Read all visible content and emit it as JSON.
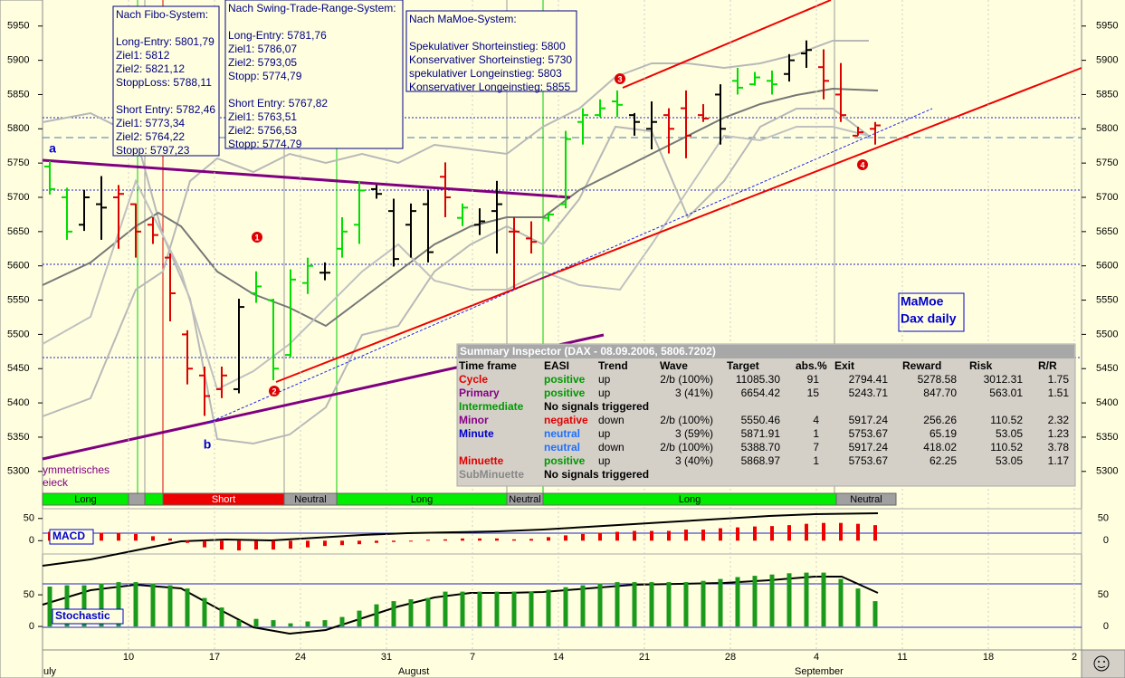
{
  "chart_data": {
    "type": "ohlc",
    "ylim": [
      5268,
      5988
    ],
    "yticks": [
      5300,
      5350,
      5400,
      5450,
      5500,
      5550,
      5600,
      5650,
      5700,
      5750,
      5800,
      5850,
      5900,
      5950
    ],
    "ohlc": [
      [
        5745,
        5753,
        5704,
        5712
      ],
      [
        5700,
        5714,
        5638,
        5650
      ],
      [
        5660,
        5711,
        5651,
        5700
      ],
      [
        5690,
        5731,
        5638,
        5685
      ],
      [
        5700,
        5718,
        5625,
        5705
      ],
      [
        5690,
        5691,
        5612,
        5650
      ],
      [
        5660,
        5671,
        5632,
        5645
      ],
      [
        5612,
        5618,
        5519,
        5560
      ],
      [
        5500,
        5506,
        5427,
        5450
      ],
      [
        5440,
        5453,
        5381,
        5410
      ],
      [
        5420,
        5453,
        5407,
        5440
      ],
      [
        5420,
        5552,
        5414,
        5540
      ],
      [
        5560,
        5592,
        5546,
        5570
      ],
      [
        5550,
        5552,
        5433,
        5450
      ],
      [
        5470,
        5595,
        5467,
        5580
      ],
      [
        5575,
        5612,
        5559,
        5600
      ],
      [
        5590,
        5605,
        5579,
        5590
      ],
      [
        5625,
        5671,
        5612,
        5650
      ],
      [
        5660,
        5724,
        5632,
        5710
      ],
      [
        5712,
        5718,
        5698,
        5705
      ],
      [
        5680,
        5698,
        5599,
        5610
      ],
      [
        5660,
        5691,
        5612,
        5680
      ],
      [
        5690,
        5711,
        5605,
        5620
      ],
      [
        5730,
        5751,
        5671,
        5700
      ],
      [
        5670,
        5691,
        5658,
        5685
      ],
      [
        5660,
        5684,
        5645,
        5665
      ],
      [
        5680,
        5724,
        5618,
        5690
      ],
      [
        5650,
        5671,
        5566,
        5650
      ],
      [
        5640,
        5665,
        5618,
        5635
      ],
      [
        5670,
        5678,
        5665,
        5675
      ],
      [
        5690,
        5797,
        5684,
        5785
      ],
      [
        5810,
        5830,
        5777,
        5820
      ],
      [
        5820,
        5843,
        5817,
        5830
      ],
      [
        5840,
        5856,
        5817,
        5835
      ],
      [
        5820,
        5823,
        5790,
        5810
      ],
      [
        5800,
        5840,
        5770,
        5810
      ],
      [
        5820,
        5830,
        5764,
        5800
      ],
      [
        5830,
        5856,
        5757,
        5790
      ],
      [
        5820,
        5836,
        5810,
        5815
      ],
      [
        5850,
        5865,
        5777,
        5800
      ],
      [
        5870,
        5889,
        5850,
        5860
      ],
      [
        5865,
        5883,
        5863,
        5875
      ],
      [
        5870,
        5885,
        5850,
        5865
      ],
      [
        5880,
        5909,
        5869,
        5900
      ],
      [
        5910,
        5929,
        5889,
        5915
      ],
      [
        5890,
        5916,
        5843,
        5870
      ],
      [
        5850,
        5896,
        5810,
        5820
      ],
      [
        5790,
        5803,
        5790,
        5795
      ],
      [
        5800,
        5810,
        5777,
        5805
      ]
    ],
    "bar_colors": [
      "#00dd00",
      "#00dd00",
      "#000000",
      "#000000",
      "#dd0000",
      "#dd0000",
      "#dd0000",
      "#dd0000",
      "#dd0000",
      "#dd0000",
      "#dd0000",
      "#000000",
      "#00dd00",
      "#00dd00",
      "#00dd00",
      "#00dd00",
      "#000000",
      "#00dd00",
      "#00dd00",
      "#000000",
      "#000000",
      "#000000",
      "#000000",
      "#dd0000",
      "#00dd00",
      "#000000",
      "#000000",
      "#dd0000",
      "#dd0000",
      "#00dd00",
      "#00dd00",
      "#00dd00",
      "#00dd00",
      "#00dd00",
      "#000000",
      "#000000",
      "#dd0000",
      "#dd0000",
      "#dd0000",
      "#000000",
      "#00dd00",
      "#00dd00",
      "#00dd00",
      "#000000",
      "#000000",
      "#dd0000",
      "#dd0000",
      "#dd0000",
      "#dd0000"
    ],
    "x_labels": [
      "10",
      "17",
      "24",
      "31",
      "7",
      "14",
      "21",
      "28",
      "4",
      "11",
      "18",
      "2"
    ],
    "month_labels": [
      "uly",
      "August",
      "September"
    ],
    "annotations": [
      "a",
      "b",
      "1",
      "2",
      "3",
      "4"
    ],
    "pattern_label": [
      "ymmetrisches",
      "eieck"
    ],
    "chart_label": [
      "MaMoe",
      "Dax daily"
    ]
  },
  "trend_bar": [
    {
      "label": "Long",
      "color": "#00ee00"
    },
    {
      "color": "#a0a0a0"
    },
    {
      "color": "#00ee00"
    },
    {
      "label": "Short",
      "color": "#ee0000"
    },
    {
      "label": "Neutral",
      "color": "#a0a0a0"
    },
    {
      "label": "Long",
      "color": "#00ee00"
    },
    {
      "label": "Neutral",
      "color": "#a0a0a0"
    },
    {
      "label": "Long",
      "color": "#00ee00"
    },
    {
      "label": "Neutral",
      "color": "#a0a0a0"
    }
  ],
  "macd": {
    "label": "MACD",
    "ylim": [
      -30,
      72
    ],
    "yticks": [
      0,
      50
    ],
    "values": [
      20,
      22,
      20,
      18,
      18,
      15,
      10,
      5,
      -5,
      -15,
      -20,
      -22,
      -20,
      -20,
      -18,
      -15,
      -12,
      -10,
      -8,
      -5,
      -3,
      0,
      2,
      3,
      5,
      5,
      5,
      3,
      4,
      8,
      12,
      15,
      18,
      20,
      22,
      22,
      22,
      25,
      25,
      28,
      30,
      32,
      33,
      35,
      38,
      40,
      40,
      38,
      35
    ]
  },
  "stochastic": {
    "label": "Stochastic",
    "ylim": [
      -37,
      103
    ],
    "yticks": [
      0,
      50
    ],
    "values": [
      63,
      65,
      65,
      68,
      70,
      70,
      68,
      65,
      60,
      45,
      30,
      10,
      12,
      10,
      5,
      8,
      10,
      15,
      25,
      35,
      40,
      43,
      45,
      55,
      55,
      55,
      55,
      55,
      55,
      58,
      62,
      65,
      68,
      70,
      70,
      70,
      70,
      70,
      72,
      75,
      78,
      80,
      82,
      84,
      85,
      85,
      75,
      60,
      40
    ]
  },
  "info_boxes": [
    {
      "title": "Nach Fibo-System:",
      "groups": [
        [
          "Long-Entry: 5801,79",
          "Ziel1: 5812",
          "Ziel2: 5821,12",
          "StoppLoss: 5788,11"
        ],
        [
          "Short Entry: 5782,46",
          "Ziel1: 5773,34",
          "Ziel2: 5764,22",
          "Stopp: 5797,23"
        ]
      ]
    },
    {
      "title": "Nach Swing-Trade-Range-System:",
      "groups": [
        [
          "Long-Entry: 5781,76",
          "Ziel1: 5786,07",
          "Ziel2: 5793,05",
          "Stopp: 5774,79"
        ],
        [
          "Short Entry: 5767,82",
          "Ziel1: 5763,51",
          "Ziel2: 5756,53",
          "Stopp: 5774,79"
        ]
      ]
    },
    {
      "title": "Nach MaMoe-System:",
      "groups": [
        [
          "Spekulativer Shorteinstieg: 5800",
          "Konservativer Shorteinstieg: 5730",
          "spekulativer Longeinstieg: 5803",
          "Konservativer Longeinstieg: 5855"
        ]
      ]
    }
  ],
  "summary": {
    "title": "Summary Inspector (DAX - 08.09.2006, 5806.7202)",
    "header": [
      "Time frame",
      "EASI",
      "Trend",
      "Wave",
      "Target",
      "abs.%",
      "Exit",
      "Reward",
      "Risk",
      "R/R"
    ],
    "rows": [
      {
        "cells": [
          "Cycle",
          "positive",
          "up",
          "2/b (100%)",
          "11085.30",
          "91",
          "2794.41",
          "5278.58",
          "3012.31",
          "1.75"
        ],
        "colors": [
          "#e00000",
          "#009900"
        ]
      },
      {
        "cells": [
          "Primary",
          "positive",
          "up",
          "3 (41%)",
          "6654.42",
          "15",
          "5243.71",
          "847.70",
          "563.01",
          "1.51"
        ],
        "colors": [
          "#880088",
          "#009900"
        ]
      },
      {
        "cells": [
          "Intermediate",
          "No signals triggered"
        ],
        "colors": [
          "#009900",
          "#000000"
        ]
      },
      {
        "cells": [
          "Minor",
          "negative",
          "down",
          "2/b (100%)",
          "5550.46",
          "4",
          "5917.24",
          "256.26",
          "110.52",
          "2.32"
        ],
        "colors": [
          "#880088",
          "#e00000"
        ]
      },
      {
        "cells": [
          "Minute",
          "neutral",
          "up",
          "3 (59%)",
          "5871.91",
          "1",
          "5753.67",
          "65.19",
          "53.05",
          "1.23"
        ],
        "colors": [
          "#0000cc",
          "#1e70ff"
        ]
      },
      {
        "cells": [
          null,
          "neutral",
          "down",
          "2/b (100%)",
          "5388.70",
          "7",
          "5917.24",
          "418.02",
          "110.52",
          "3.78"
        ],
        "colors": [
          "#000000",
          "#1e70ff"
        ]
      },
      {
        "cells": [
          "Minuette",
          "positive",
          "up",
          "3 (40%)",
          "5868.97",
          "1",
          "5753.67",
          "62.25",
          "53.05",
          "1.17"
        ],
        "colors": [
          "#e00000",
          "#009900"
        ]
      },
      {
        "cells": [
          "SubMinuette",
          "No signals triggered"
        ],
        "colors": [
          "#888888",
          "#000000"
        ]
      }
    ]
  }
}
